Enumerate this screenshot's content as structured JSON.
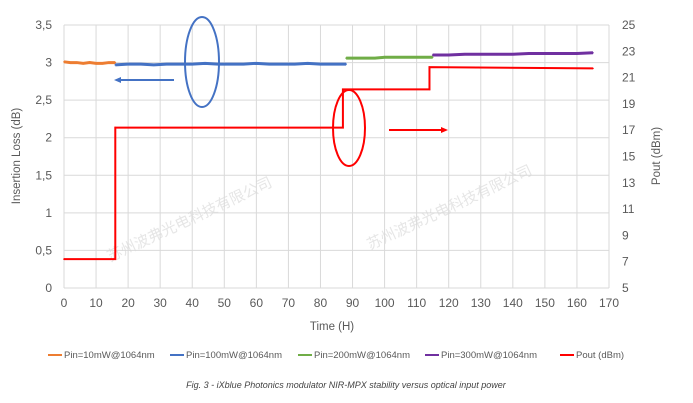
{
  "chart_data": {
    "type": "line",
    "xlabel": "Time (H)",
    "ylabel": "Insertion Loss (dB)",
    "y2label": "Pout (dBm)",
    "xlim": [
      0,
      170
    ],
    "ylim": [
      0,
      3.5
    ],
    "y2lim": [
      5,
      25
    ],
    "xticks": [
      "0",
      "10",
      "20",
      "30",
      "40",
      "50",
      "60",
      "70",
      "80",
      "90",
      "100",
      "110",
      "120",
      "130",
      "140",
      "150",
      "160",
      "170"
    ],
    "yticks": [
      "0",
      "0,5",
      "1",
      "1,5",
      "2",
      "2,5",
      "3",
      "3,5"
    ],
    "y2ticks": [
      "5",
      "7",
      "9",
      "11",
      "13",
      "15",
      "17",
      "19",
      "21",
      "23",
      "25"
    ],
    "grid": true,
    "legend_position": "bottom",
    "series": [
      {
        "name": "Pin=10mW@1064nm",
        "color": "#ED7D31",
        "axis": "left",
        "points": [
          [
            0,
            3.01
          ],
          [
            2,
            3.0
          ],
          [
            4,
            3.0
          ],
          [
            6,
            2.99
          ],
          [
            8,
            3.0
          ],
          [
            10,
            2.99
          ],
          [
            12,
            2.99
          ],
          [
            14,
            3.0
          ],
          [
            16,
            3.0
          ]
        ]
      },
      {
        "name": "Pin=100mW@1064nm",
        "color": "#4472C4",
        "axis": "left",
        "points": [
          [
            16,
            2.97
          ],
          [
            20,
            2.98
          ],
          [
            24,
            2.98
          ],
          [
            28,
            2.97
          ],
          [
            32,
            2.98
          ],
          [
            36,
            2.98
          ],
          [
            40,
            2.98
          ],
          [
            44,
            2.99
          ],
          [
            48,
            2.98
          ],
          [
            52,
            2.98
          ],
          [
            56,
            2.98
          ],
          [
            60,
            2.99
          ],
          [
            64,
            2.98
          ],
          [
            68,
            2.98
          ],
          [
            72,
            2.98
          ],
          [
            76,
            2.99
          ],
          [
            80,
            2.98
          ],
          [
            84,
            2.98
          ],
          [
            88,
            2.98
          ]
        ]
      },
      {
        "name": "Pin=200mW@1064nm",
        "color": "#70AD47",
        "axis": "left",
        "points": [
          [
            88,
            3.06
          ],
          [
            91,
            3.06
          ],
          [
            94,
            3.06
          ],
          [
            97,
            3.06
          ],
          [
            100,
            3.07
          ],
          [
            103,
            3.07
          ],
          [
            106,
            3.07
          ],
          [
            109,
            3.07
          ],
          [
            112,
            3.07
          ],
          [
            115,
            3.07
          ]
        ]
      },
      {
        "name": "Pin=300mW@1064nm",
        "color": "#7030A0",
        "axis": "left",
        "points": [
          [
            115,
            3.1
          ],
          [
            120,
            3.1
          ],
          [
            125,
            3.11
          ],
          [
            130,
            3.11
          ],
          [
            135,
            3.11
          ],
          [
            140,
            3.11
          ],
          [
            145,
            3.12
          ],
          [
            150,
            3.12
          ],
          [
            155,
            3.12
          ],
          [
            160,
            3.12
          ],
          [
            165,
            3.13
          ]
        ]
      },
      {
        "name": "Pout (dBm)",
        "color": "#FF0000",
        "axis": "right",
        "points": [
          [
            0,
            7.2
          ],
          [
            16,
            7.2
          ],
          [
            16,
            17.2
          ],
          [
            87,
            17.2
          ],
          [
            87,
            20.1
          ],
          [
            114,
            20.1
          ],
          [
            114,
            21.8
          ],
          [
            165,
            21.7
          ]
        ]
      }
    ],
    "caption": "Fig. 3 - iXblue Photonics modulator  NIR-MPX stability versus optical input power"
  },
  "watermark": "苏州波弗光电科技有限公司"
}
